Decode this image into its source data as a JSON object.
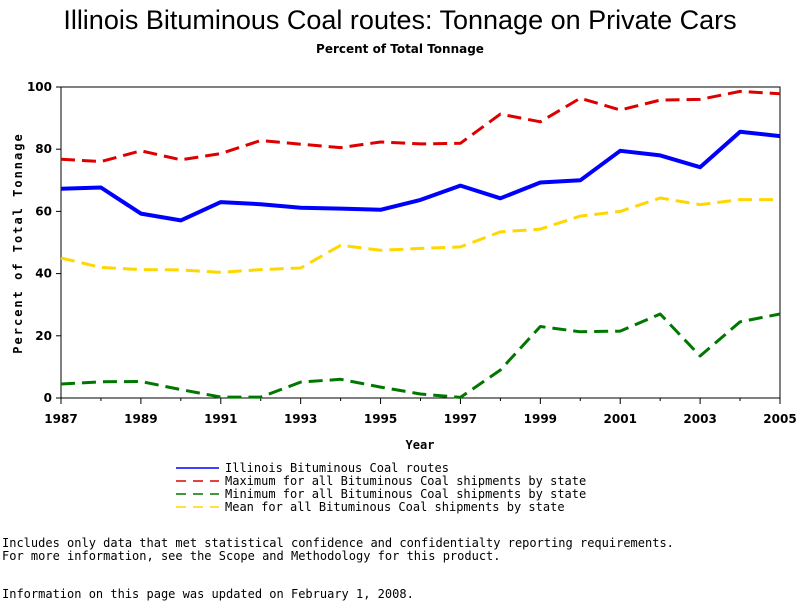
{
  "chart_data": {
    "type": "line",
    "title": "Illinois Bituminous Coal routes: Tonnage on Private Cars",
    "subtitle": "Percent of Total Tonnage",
    "xlabel": "Year",
    "ylabel": "Percent of Total Tonnage",
    "xlim": [
      1987,
      2005
    ],
    "ylim": [
      0,
      100
    ],
    "xticks": [
      "1987",
      "1989",
      "1991",
      "1993",
      "1995",
      "1997",
      "1999",
      "2001",
      "2003",
      "2005"
    ],
    "yticks": [
      "0",
      "20",
      "40",
      "60",
      "80",
      "100"
    ],
    "grid": false,
    "legend_placement": "bottom",
    "x": [
      1987,
      1988,
      1989,
      1990,
      1991,
      1992,
      1993,
      1994,
      1995,
      1996,
      1997,
      1998,
      1999,
      2000,
      2001,
      2002,
      2003,
      2004,
      2005
    ],
    "series": [
      {
        "name": "Illinois Bituminous Coal routes",
        "color": "#0000ff",
        "style": "solid",
        "values": [
          67.3,
          67.7,
          59.3,
          57.1,
          63.0,
          62.3,
          61.2,
          60.9,
          60.5,
          63.7,
          68.3,
          64.2,
          69.3,
          70.0,
          79.5,
          78.0,
          74.2,
          85.6,
          84.2
        ]
      },
      {
        "name": "Maximum for all Bituminous Coal shipments by state",
        "color": "#dd0000",
        "style": "dashed",
        "values": [
          76.8,
          76.0,
          79.5,
          76.6,
          78.6,
          82.8,
          81.6,
          80.5,
          82.3,
          81.7,
          81.9,
          91.3,
          88.8,
          96.4,
          92.6,
          95.8,
          96.0,
          98.6,
          97.8
        ]
      },
      {
        "name": "Minimum for all Bituminous Coal shipments by state",
        "color": "#007700",
        "style": "dashed",
        "values": [
          4.5,
          5.2,
          5.3,
          2.7,
          0.3,
          0.3,
          5.1,
          6.0,
          3.5,
          1.3,
          0.2,
          9.0,
          23.0,
          21.3,
          21.5,
          27.0,
          13.5,
          24.5,
          27.0
        ]
      },
      {
        "name": "Mean for all Bituminous Coal shipments by state",
        "color": "#ffd700",
        "style": "dashed",
        "values": [
          45.0,
          42.0,
          41.3,
          41.2,
          40.4,
          41.3,
          41.8,
          49.1,
          47.5,
          48.1,
          48.6,
          53.4,
          54.3,
          58.5,
          60.0,
          64.3,
          62.2,
          63.8,
          63.8
        ]
      }
    ]
  },
  "footnotes": [
    "Includes only data that met statistical confidence and confidentialty reporting requirements.",
    "For more information, see the Scope and Methodology for this product."
  ],
  "updated": "Information on this page was updated on February 1, 2008."
}
